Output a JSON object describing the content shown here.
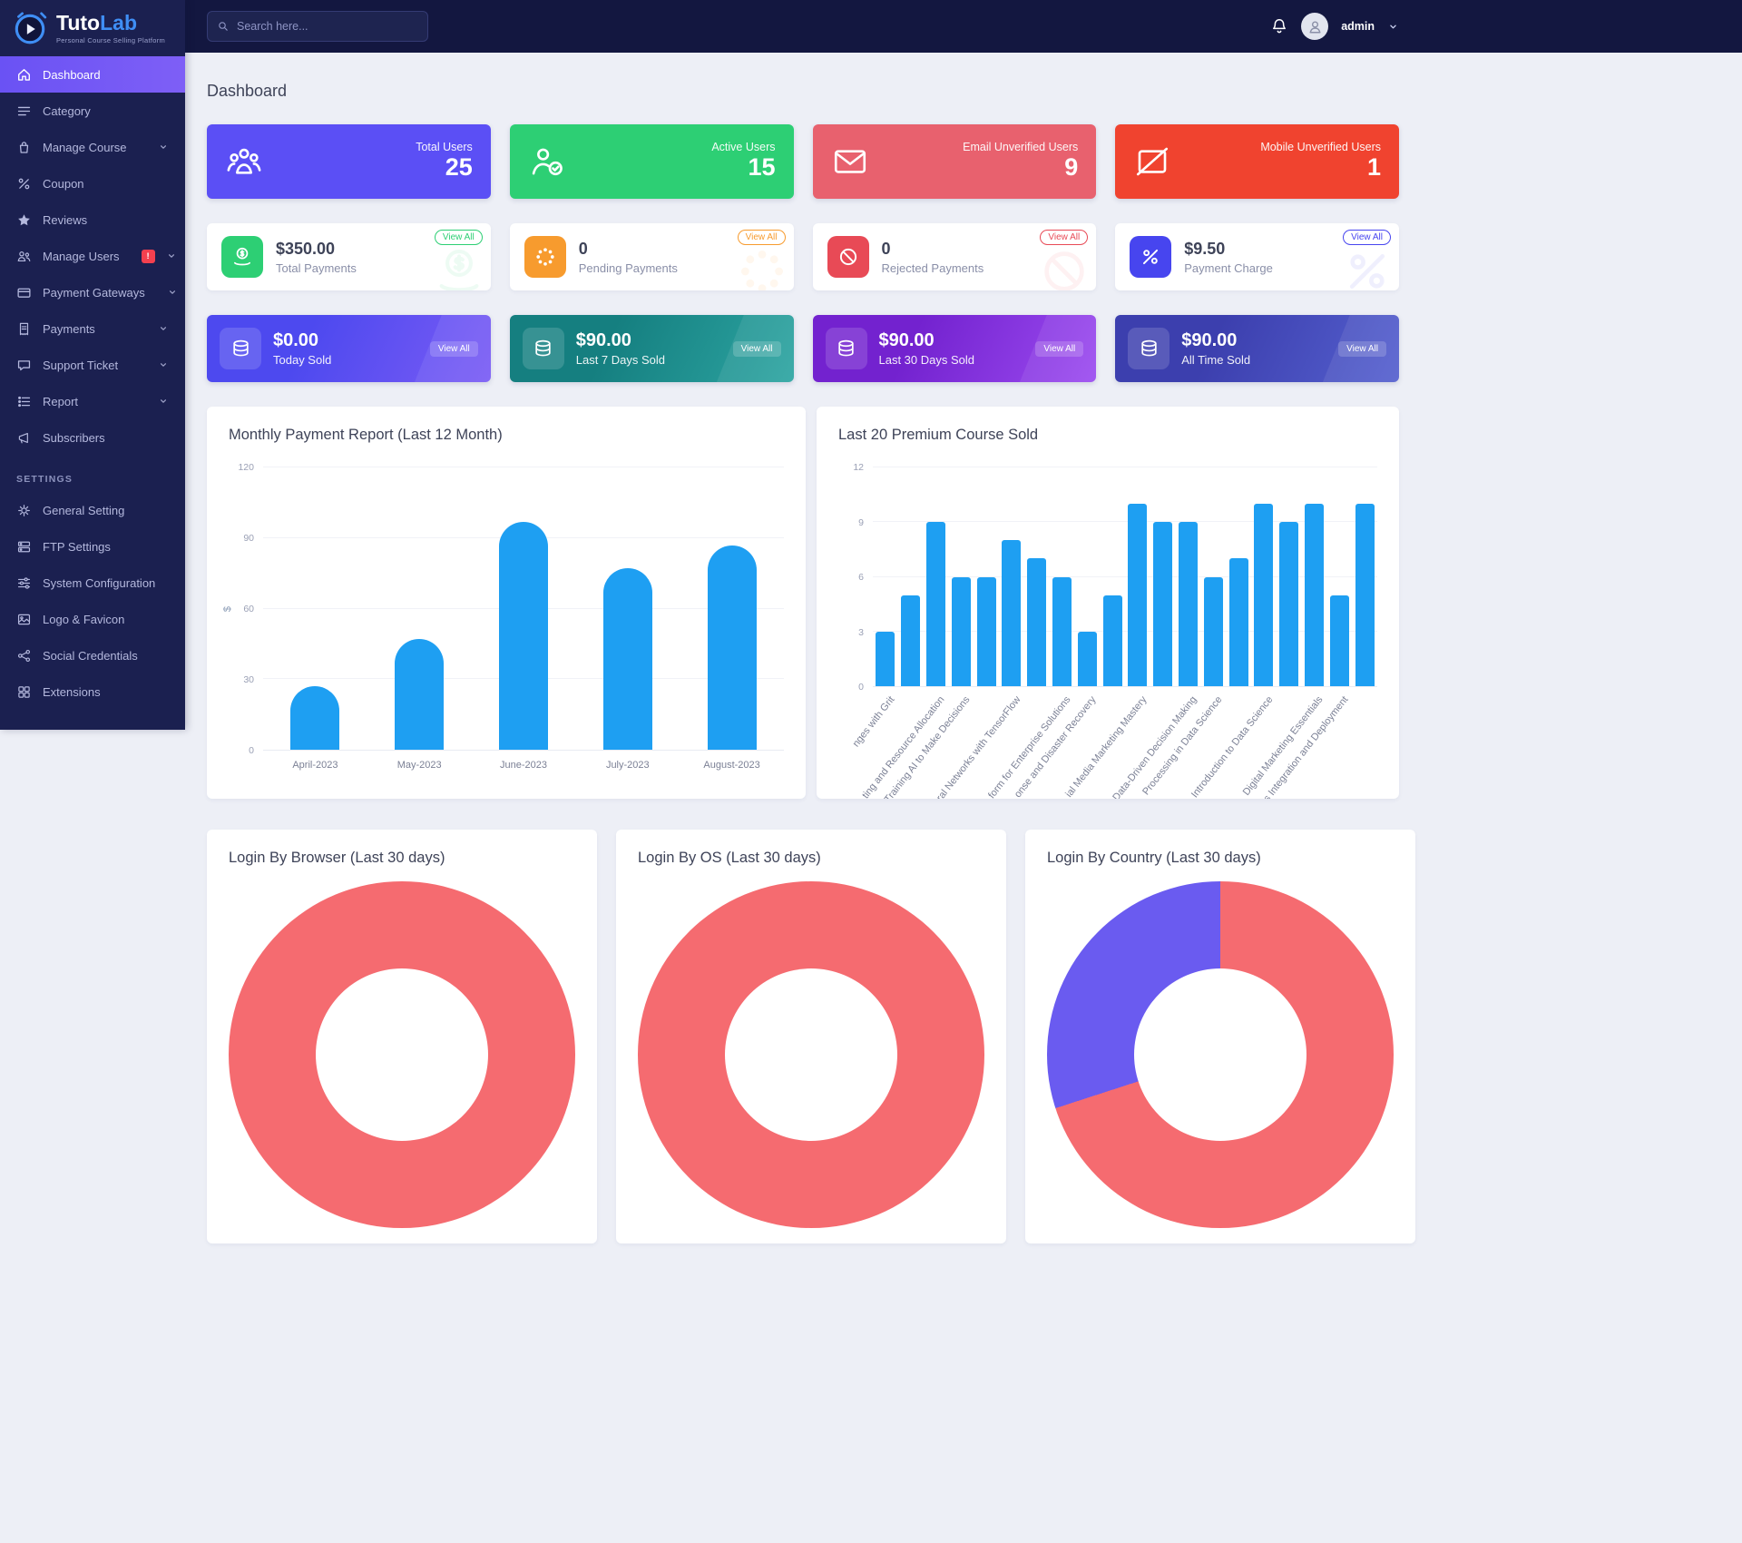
{
  "brand": {
    "title_primary": "Tuto",
    "title_accent": "Lab",
    "tagline": "Personal Course Selling Platform"
  },
  "topbar": {
    "search_placeholder": "Search here...",
    "username": "admin"
  },
  "sidebar": {
    "items": [
      {
        "label": "Dashboard",
        "icon": "home-icon",
        "active": true
      },
      {
        "label": "Category",
        "icon": "menu-icon"
      },
      {
        "label": "Manage Course",
        "icon": "course-icon",
        "chevron": true
      },
      {
        "label": "Coupon",
        "icon": "percent-icon"
      },
      {
        "label": "Reviews",
        "icon": "star-icon"
      },
      {
        "label": "Manage Users",
        "icon": "users-icon",
        "badge": "!",
        "chevron": true
      },
      {
        "label": "Payment Gateways",
        "icon": "card-icon",
        "chevron": true
      },
      {
        "label": "Payments",
        "icon": "receipt-icon",
        "chevron": true
      },
      {
        "label": "Support Ticket",
        "icon": "ticket-icon",
        "chevron": true
      },
      {
        "label": "Report",
        "icon": "report-icon",
        "chevron": true
      },
      {
        "label": "Subscribers",
        "icon": "subscribers-icon"
      }
    ],
    "settings_header": "SETTINGS",
    "settings_items": [
      {
        "label": "General Setting",
        "icon": "gear-icon"
      },
      {
        "label": "FTP Settings",
        "icon": "ftp-icon"
      },
      {
        "label": "System Configuration",
        "icon": "config-icon"
      },
      {
        "label": "Logo & Favicon",
        "icon": "image-icon"
      },
      {
        "label": "Social Credentials",
        "icon": "share-icon"
      },
      {
        "label": "Extensions",
        "icon": "extension-icon"
      }
    ]
  },
  "page_title": "Dashboard",
  "stat_cards": [
    {
      "label": "Total Users",
      "value": "25",
      "color": "#5b4ff5",
      "icon": "users-group-icon"
    },
    {
      "label": "Active Users",
      "value": "15",
      "color": "#2dcf74",
      "icon": "user-check-icon"
    },
    {
      "label": "Email Unverified Users",
      "value": "9",
      "color": "#e8616e",
      "icon": "envelope-icon"
    },
    {
      "label": "Mobile Unverified Users",
      "value": "1",
      "color": "#f0432f",
      "icon": "mobile-slash-icon"
    }
  ],
  "payment_cards": [
    {
      "value": "$350.00",
      "label": "Total Payments",
      "badge": "View All",
      "color": "#2dcf74",
      "icon": "hand-dollar-icon"
    },
    {
      "value": "0",
      "label": "Pending Payments",
      "badge": "View All",
      "color": "#f79b2e",
      "icon": "spinner-dots-icon"
    },
    {
      "value": "0",
      "label": "Rejected Payments",
      "badge": "View All",
      "color": "#e84a56",
      "icon": "ban-icon"
    },
    {
      "value": "$9.50",
      "label": "Payment Charge",
      "badge": "View All",
      "color": "#4745ef",
      "icon": "percent-circle-icon"
    }
  ],
  "sold_cards": [
    {
      "value": "$0.00",
      "label": "Today Sold",
      "badge": "View All",
      "icon": "coins-icon",
      "gradient": [
        "#4d49ef",
        "#7a5cf5"
      ]
    },
    {
      "value": "$90.00",
      "label": "Last 7 Days Sold",
      "badge": "View All",
      "icon": "coins-icon",
      "gradient": [
        "#157f80",
        "#2da5a2"
      ]
    },
    {
      "value": "$90.00",
      "label": "Last 30 Days Sold",
      "badge": "View All",
      "icon": "coins-icon",
      "gradient": [
        "#7322cf",
        "#9b4bf0"
      ]
    },
    {
      "value": "$90.00",
      "label": "All Time Sold",
      "badge": "View All",
      "icon": "coins-icon",
      "gradient": [
        "#3c3fae",
        "#5560cf"
      ]
    }
  ],
  "chart_data": [
    {
      "type": "bar",
      "title": "Monthly Payment Report (Last 12 Month)",
      "categories": [
        "April-2023",
        "May-2023",
        "June-2023",
        "July-2023",
        "August-2023"
      ],
      "values": [
        27,
        47,
        97,
        77,
        87
      ],
      "ylabel": "$",
      "yticks": [
        0,
        30,
        60,
        90,
        120
      ],
      "ylim": [
        0,
        120
      ],
      "bar_color": "#1e9ff2",
      "grid": true,
      "legend": false
    },
    {
      "type": "bar",
      "title": "Last 20 Premium Course Sold",
      "categories": [
        "nges with Grit",
        "",
        "ting and Resource Allocation",
        "Training AI to Make Decisions",
        "",
        "ral Networks with TensorFlow",
        "",
        "form for Enterprise Solutions",
        "onse and Disaster Recovery",
        "",
        "ial Media Marketing Mastery",
        "",
        "Data-Driven Decision Making",
        "Processing in Data Science",
        "",
        "Introduction to Data Science",
        "",
        "Digital Marketing Essentials",
        "s Integration and Deployment",
        ""
      ],
      "values": [
        3,
        5,
        9,
        6,
        6,
        8,
        7,
        6,
        3,
        5,
        10,
        9,
        9,
        6,
        7,
        10,
        9,
        10,
        5,
        10
      ],
      "yticks": [
        0,
        3,
        6,
        9,
        12
      ],
      "ylim": [
        0,
        12
      ],
      "bar_color": "#1e9ff2",
      "xlabels_rotated": true,
      "grid": true,
      "legend": false
    },
    {
      "type": "pie",
      "title": "Login By Browser (Last 30 days)",
      "segments": [
        {
          "value": 100,
          "color": "#f56b70"
        }
      ],
      "legend": false
    },
    {
      "type": "pie",
      "title": "Login By OS (Last 30 days)",
      "segments": [
        {
          "value": 100,
          "color": "#f56b70"
        }
      ],
      "legend": false
    },
    {
      "type": "pie",
      "title": "Login By Country (Last 30 days)",
      "segments": [
        {
          "value": 70,
          "color": "#f56b70"
        },
        {
          "value": 30,
          "color": "#6a5bf0"
        }
      ],
      "legend": false
    }
  ]
}
